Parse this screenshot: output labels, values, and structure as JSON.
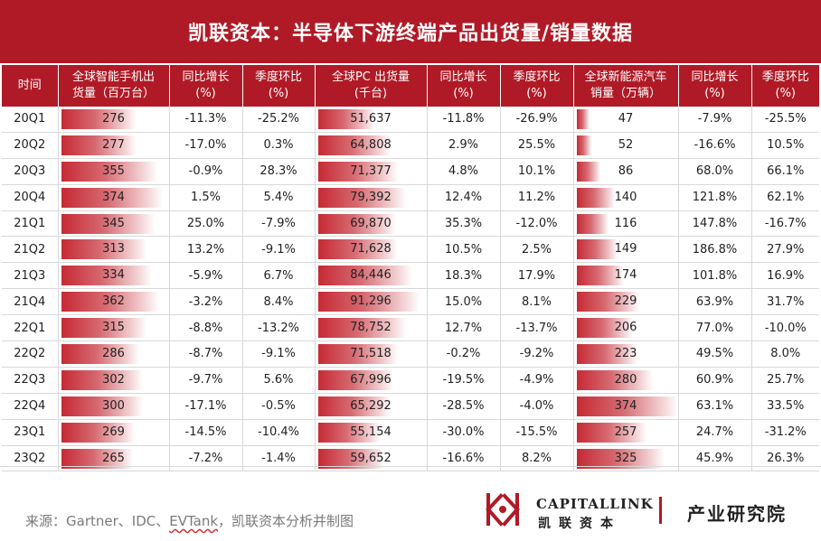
{
  "title": "凯联资本：半导体下游终端产品出货量/销量数据",
  "source": {
    "prefix": "来源：Gartner、IDC、",
    "evtank": "EVTank",
    "suffix": "，凯联资本分析并制图"
  },
  "brand": {
    "english": "CAPITALLINK",
    "chinese": "凯联资本",
    "institute": "产业研究院"
  },
  "colors": {
    "accent": "#b01a26",
    "negative": "#c00000"
  },
  "chart_data": {
    "type": "table",
    "title": "凯联资本：半导体下游终端产品出货量/销量数据",
    "headers": [
      "时间",
      "全球智能手机出货量（百万台）",
      "同比增长(%)",
      "季度环比(%)",
      "全球PC 出货量(千台)",
      "同比增长(%)",
      "季度环比(%)",
      "全球新能源汽车销量（万辆）",
      "同比增长(%)",
      "季度环比(%)"
    ],
    "header_lines": [
      [
        "时间"
      ],
      [
        "全球智能手机出",
        "货量（百万台）"
      ],
      [
        "同比增长",
        "(%)"
      ],
      [
        "季度环比",
        "(%)"
      ],
      [
        "全球PC 出货量",
        "(千台)"
      ],
      [
        "同比增长",
        "(%)"
      ],
      [
        "季度环比",
        "(%)"
      ],
      [
        "全球新能源汽车",
        "销量（万辆）"
      ],
      [
        "同比增长",
        "(%)"
      ],
      [
        "季度环比",
        "(%)"
      ]
    ],
    "periods": [
      "20Q1",
      "20Q2",
      "20Q3",
      "20Q4",
      "21Q1",
      "21Q2",
      "21Q3",
      "21Q4",
      "22Q1",
      "22Q2",
      "22Q3",
      "22Q4",
      "23Q1",
      "23Q2"
    ],
    "bar_max": {
      "smartphone": 374,
      "pc": 91296,
      "ev": 374
    },
    "series": [
      {
        "name": "全球智能手机出货量（百万台）",
        "key": "smartphone",
        "values": [
          "276",
          "277",
          "355",
          "374",
          "345",
          "313",
          "334",
          "362",
          "315",
          "286",
          "302",
          "300",
          "269",
          "265"
        ],
        "numeric": [
          276,
          277,
          355,
          374,
          345,
          313,
          334,
          362,
          315,
          286,
          302,
          300,
          269,
          265
        ]
      },
      {
        "name": "同比增长(%)",
        "key": "smartphone_yoy",
        "values": [
          "-11.3%",
          "-17.0%",
          "-0.9%",
          "1.5%",
          "25.0%",
          "13.2%",
          "-5.9%",
          "-3.2%",
          "-8.8%",
          "-8.7%",
          "-9.7%",
          "-17.1%",
          "-14.5%",
          "-7.2%"
        ]
      },
      {
        "name": "季度环比(%)",
        "key": "smartphone_qoq",
        "values": [
          "-25.2%",
          "0.3%",
          "28.3%",
          "5.4%",
          "-7.9%",
          "-9.1%",
          "6.7%",
          "8.4%",
          "-13.2%",
          "-9.1%",
          "5.6%",
          "-0.5%",
          "-10.4%",
          "-1.4%"
        ]
      },
      {
        "name": "全球PC 出货量(千台)",
        "key": "pc",
        "values": [
          "51,637",
          "64,808",
          "71,377",
          "79,392",
          "69,870",
          "71,628",
          "84,446",
          "91,296",
          "78,752",
          "71,518",
          "67,996",
          "65,292",
          "55,154",
          "59,652"
        ],
        "numeric": [
          51637,
          64808,
          71377,
          79392,
          69870,
          71628,
          84446,
          91296,
          78752,
          71518,
          67996,
          65292,
          55154,
          59652
        ]
      },
      {
        "name": "同比增长(%)",
        "key": "pc_yoy",
        "values": [
          "-11.8%",
          "2.9%",
          "4.8%",
          "12.4%",
          "35.3%",
          "10.5%",
          "18.3%",
          "15.0%",
          "12.7%",
          "-0.2%",
          "-19.5%",
          "-28.5%",
          "-30.0%",
          "-16.6%"
        ]
      },
      {
        "name": "季度环比(%)",
        "key": "pc_qoq",
        "values": [
          "-26.9%",
          "25.5%",
          "10.1%",
          "11.2%",
          "-12.0%",
          "2.5%",
          "17.9%",
          "8.1%",
          "-13.7%",
          "-9.2%",
          "-4.9%",
          "-4.0%",
          "-15.5%",
          "8.2%"
        ]
      },
      {
        "name": "全球新能源汽车销量（万辆）",
        "key": "ev",
        "values": [
          "47",
          "52",
          "86",
          "140",
          "116",
          "149",
          "174",
          "229",
          "206",
          "223",
          "280",
          "374",
          "257",
          "325"
        ],
        "numeric": [
          47,
          52,
          86,
          140,
          116,
          149,
          174,
          229,
          206,
          223,
          280,
          374,
          257,
          325
        ]
      },
      {
        "name": "同比增长(%)",
        "key": "ev_yoy",
        "values": [
          "-7.9%",
          "-16.6%",
          "68.0%",
          "121.8%",
          "147.8%",
          "186.8%",
          "101.8%",
          "63.9%",
          "77.0%",
          "49.5%",
          "60.9%",
          "63.1%",
          "24.7%",
          "45.9%"
        ]
      },
      {
        "name": "季度环比(%)",
        "key": "ev_qoq",
        "values": [
          "-25.5%",
          "10.5%",
          "66.1%",
          "62.1%",
          "-16.7%",
          "27.9%",
          "16.9%",
          "31.7%",
          "-10.0%",
          "8.0%",
          "25.7%",
          "33.5%",
          "-31.2%",
          "26.3%"
        ]
      }
    ]
  }
}
